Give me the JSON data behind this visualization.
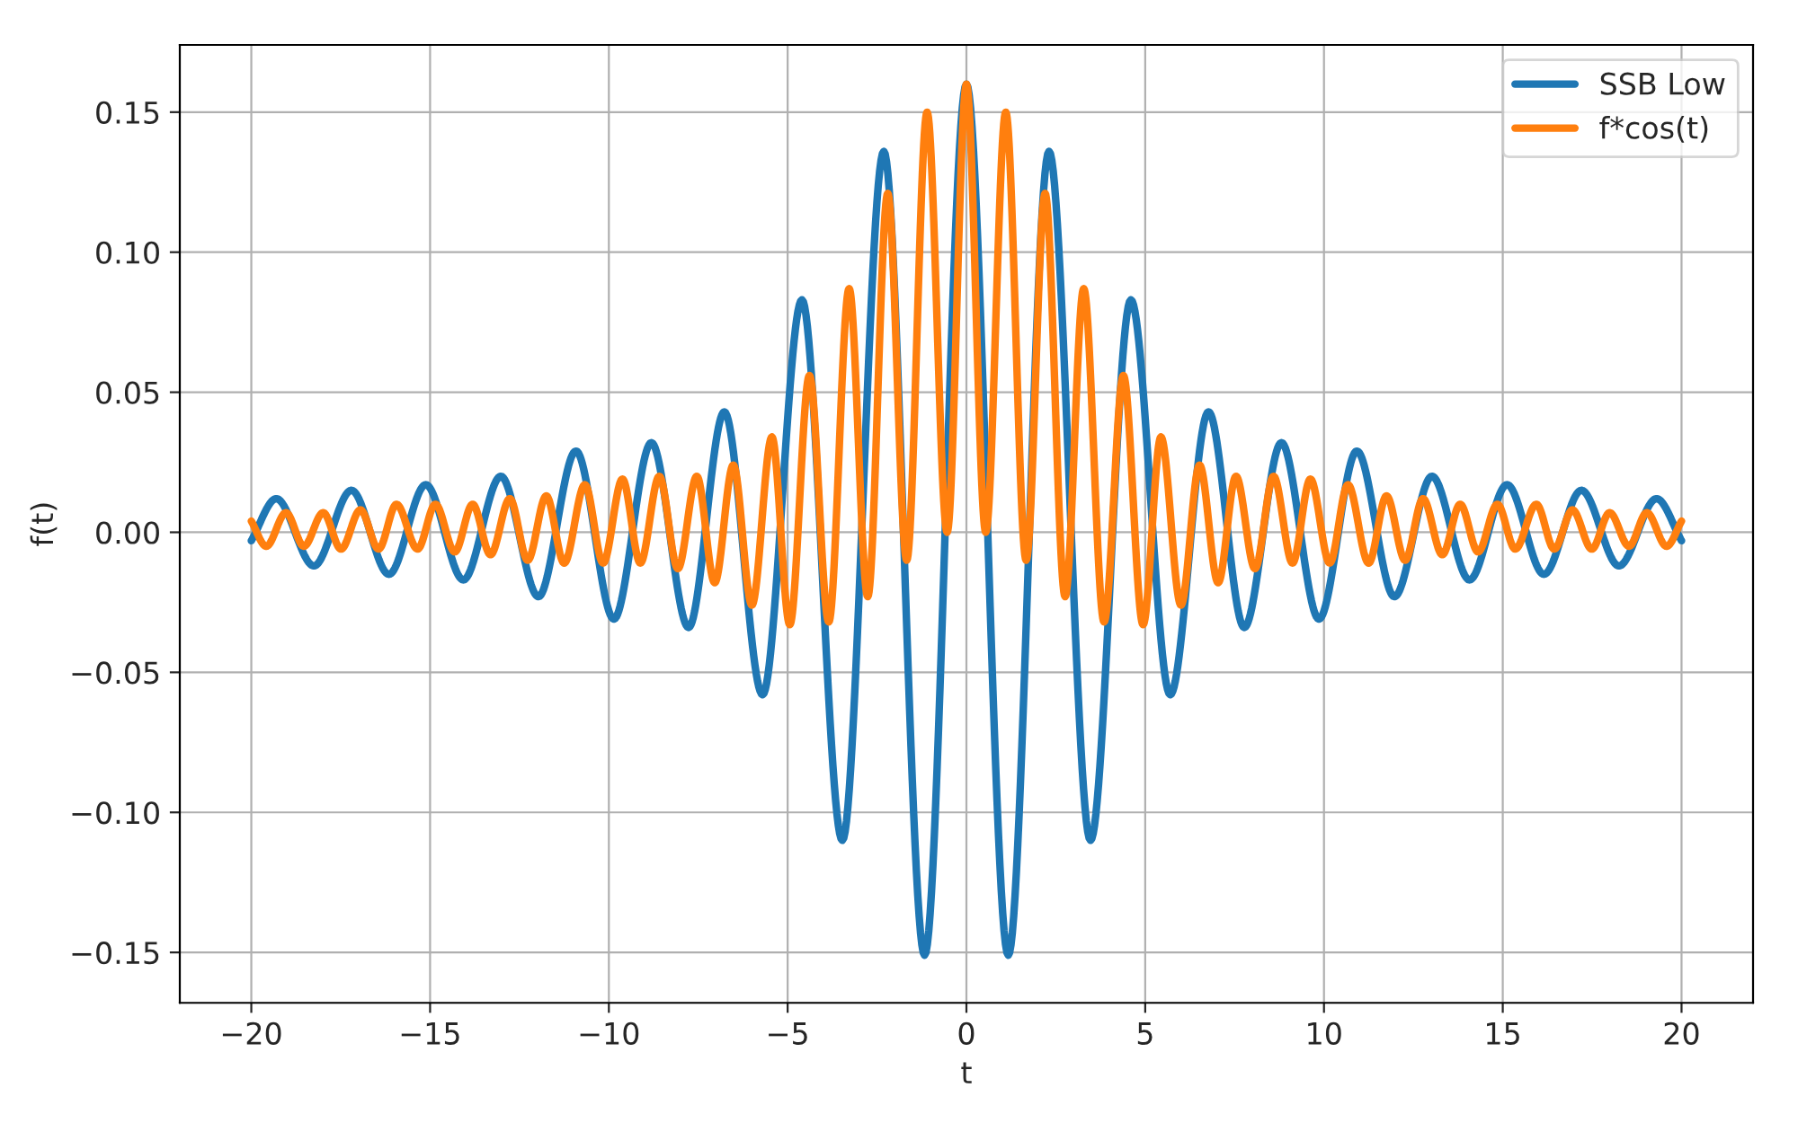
{
  "chart_data": {
    "type": "line",
    "xlabel": "t",
    "ylabel": "f(t)",
    "xlim": [
      -22,
      22
    ],
    "ylim": [
      -0.168,
      0.174
    ],
    "xticks": [
      {
        "value": -20,
        "label": "−20"
      },
      {
        "value": -15,
        "label": "−15"
      },
      {
        "value": -10,
        "label": "−10"
      },
      {
        "value": -5,
        "label": "−5"
      },
      0,
      5,
      10,
      15,
      20
    ],
    "yticks": [
      {
        "value": -0.15,
        "label": "−0.15"
      },
      {
        "value": -0.1,
        "label": "−0.10"
      },
      {
        "value": -0.05,
        "label": "−0.05"
      },
      {
        "value": 0,
        "label": "0.00"
      },
      {
        "value": 0.05,
        "label": "0.05"
      },
      {
        "value": 0.1,
        "label": "0.10"
      },
      {
        "value": 0.15,
        "label": "0.15"
      }
    ],
    "grid": true,
    "legend": "top right",
    "line_style": "solid",
    "marker": "none",
    "series": [
      {
        "name": "SSB Low",
        "color": "#1f77b4",
        "x": [
          -20,
          -19.3,
          -18.25,
          -17.2,
          -16.15,
          -15.12,
          -14.07,
          -13.02,
          -11.97,
          -10.92,
          -9.86,
          -8.81,
          -7.77,
          -6.77,
          -5.7,
          -4.6,
          -3.47,
          -2.31,
          -1.17,
          0,
          1.17,
          2.31,
          3.47,
          4.6,
          5.7,
          6.77,
          7.77,
          8.81,
          9.86,
          10.92,
          11.97,
          13.02,
          14.07,
          15.12,
          16.15,
          17.2,
          18.25,
          19.3,
          20
        ],
        "values": [
          -0.003,
          0.012,
          -0.012,
          0.015,
          -0.015,
          0.017,
          -0.017,
          0.02,
          -0.023,
          0.029,
          -0.031,
          0.032,
          -0.034,
          0.043,
          -0.058,
          0.083,
          -0.11,
          0.136,
          -0.151,
          0.16,
          -0.151,
          0.136,
          -0.11,
          0.083,
          -0.058,
          0.043,
          -0.034,
          0.032,
          -0.031,
          0.029,
          -0.023,
          0.02,
          -0.017,
          0.017,
          -0.015,
          0.015,
          -0.012,
          0.012,
          -0.003
        ]
      },
      {
        "name": "f*cos(t)",
        "color": "#ff7f0e",
        "x": [
          -20,
          -19.58,
          -19.03,
          -18.53,
          -17.99,
          -17.49,
          -16.95,
          -16.44,
          -15.94,
          -15.35,
          -14.85,
          -14.31,
          -13.81,
          -13.31,
          -12.77,
          -12.27,
          -11.75,
          -11.25,
          -10.67,
          -10.16,
          -9.62,
          -9.12,
          -8.59,
          -8.07,
          -7.54,
          -7.04,
          -6.52,
          -6.0,
          -5.44,
          -4.94,
          -4.39,
          -3.85,
          -3.28,
          -2.76,
          -2.2,
          -1.67,
          -1.1,
          -0.54,
          0,
          0.54,
          1.1,
          1.67,
          2.2,
          2.76,
          3.28,
          3.85,
          4.39,
          4.94,
          5.44,
          6.0,
          6.52,
          7.04,
          7.54,
          8.07,
          8.59,
          9.12,
          9.62,
          10.16,
          10.67,
          11.25,
          11.75,
          12.27,
          12.77,
          13.31,
          13.81,
          14.31,
          14.85,
          15.35,
          15.94,
          16.44,
          16.95,
          17.49,
          17.99,
          18.53,
          19.03,
          19.58,
          20
        ],
        "values": [
          0.004,
          -0.005,
          0.007,
          -0.005,
          0.007,
          -0.006,
          0.008,
          -0.006,
          0.01,
          -0.006,
          0.01,
          -0.007,
          0.01,
          -0.008,
          0.012,
          -0.01,
          0.013,
          -0.011,
          0.017,
          -0.011,
          0.019,
          -0.011,
          0.02,
          -0.013,
          0.02,
          -0.018,
          0.024,
          -0.026,
          0.034,
          -0.033,
          0.056,
          -0.032,
          0.087,
          -0.023,
          0.121,
          -0.01,
          0.15,
          0.0,
          0.16,
          0.0,
          0.15,
          -0.01,
          0.121,
          -0.023,
          0.087,
          -0.032,
          0.056,
          -0.033,
          0.034,
          -0.026,
          0.024,
          -0.018,
          0.02,
          -0.013,
          0.02,
          -0.011,
          0.019,
          -0.011,
          0.017,
          -0.011,
          0.013,
          -0.01,
          0.012,
          -0.008,
          0.01,
          -0.007,
          0.01,
          -0.006,
          0.01,
          -0.006,
          0.008,
          -0.006,
          0.007,
          -0.005,
          0.007,
          -0.005,
          0.004
        ]
      }
    ]
  }
}
